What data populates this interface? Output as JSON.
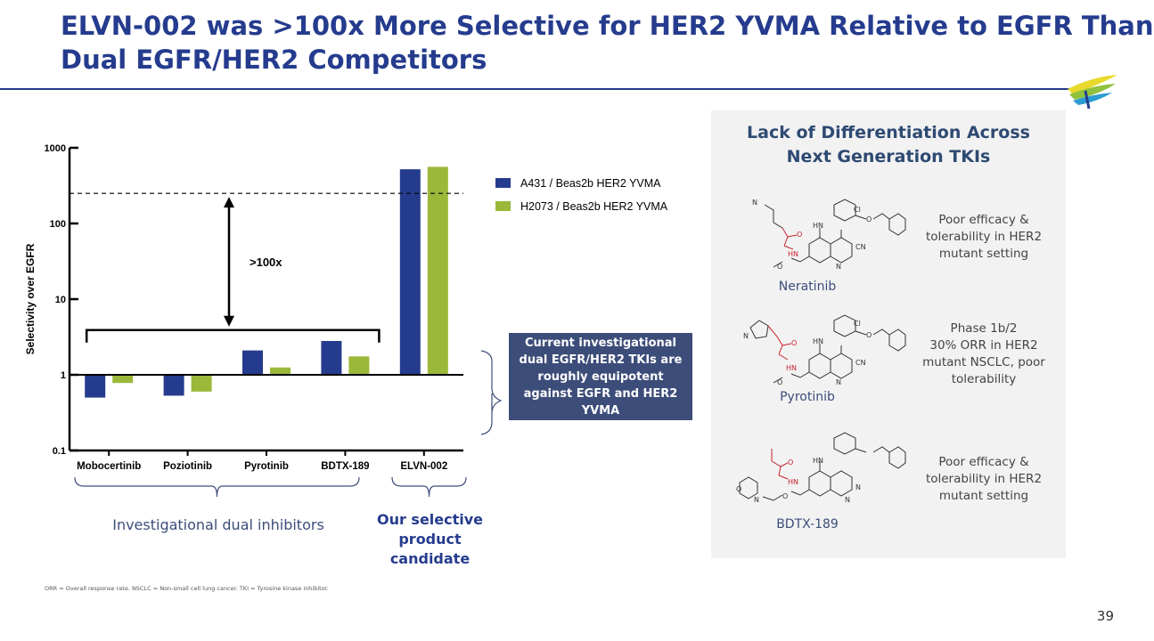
{
  "header": {
    "title_line1": "ELVN-002 was >100x More Selective for HER2 YVMA Relative to EGFR Than",
    "title_line2": "Dual EGFR/HER2 Competitors"
  },
  "colors": {
    "brand_blue": "#253c8e",
    "series_blue": "#253c8e",
    "series_green": "#9bb83a",
    "callout_bg": "#3d4d7a",
    "panel_bg": "#f2f2f2"
  },
  "chart_data": {
    "type": "bar",
    "ylabel": "Selectivity over EGFR",
    "yscale": "log",
    "ylim": [
      0.1,
      1000
    ],
    "yticks": [
      "0.1",
      "1",
      "10",
      "100",
      "1000"
    ],
    "categories": [
      "Mobocertinib",
      "Poziotinib",
      "Pyrotinib",
      "BDTX-189",
      "ELVN-002"
    ],
    "series": [
      {
        "name": "A431 / Beas2b HER2 YVMA",
        "color": "#253c8e",
        "values": [
          0.5,
          0.53,
          2.1,
          2.8,
          520
        ]
      },
      {
        "name": "H2073 / Beas2b HER2 YVMA",
        "color": "#9bb83a",
        "values": [
          0.78,
          0.6,
          1.25,
          1.75,
          560
        ]
      }
    ],
    "reference_line": 250,
    "annotation": ">100x",
    "legend_position": "right"
  },
  "callout": {
    "text": "Current investigational dual EGFR/HER2 TKIs are roughly equipotent against EGFR and HER2 YVMA"
  },
  "groups": {
    "investigational": "Investigational dual inhibitors",
    "selective_line1": "Our selective",
    "selective_line2": "product candidate"
  },
  "panel": {
    "title_line1": "Lack of Differentiation Across",
    "title_line2": "Next Generation TKIs",
    "drugs": [
      {
        "name": "Neratinib",
        "desc": "Poor efficacy & tolerability in HER2 mutant setting"
      },
      {
        "name": "Pyrotinib",
        "desc": "Phase 1b/2\n30% ORR in HER2 mutant NSCLC, poor tolerability"
      },
      {
        "name": "BDTX-189",
        "desc": "Poor efficacy & tolerability in HER2 mutant setting"
      }
    ],
    "chem_labels": {
      "n": "N",
      "hn": "HN",
      "o": "O",
      "cl": "Cl",
      "cn": "CN"
    }
  },
  "footnote": "ORR = Overall response rate. NSCLC = Non-small cell lung cancer. TKI = Tyrosine kinase inhibitor.",
  "page_number": "39"
}
